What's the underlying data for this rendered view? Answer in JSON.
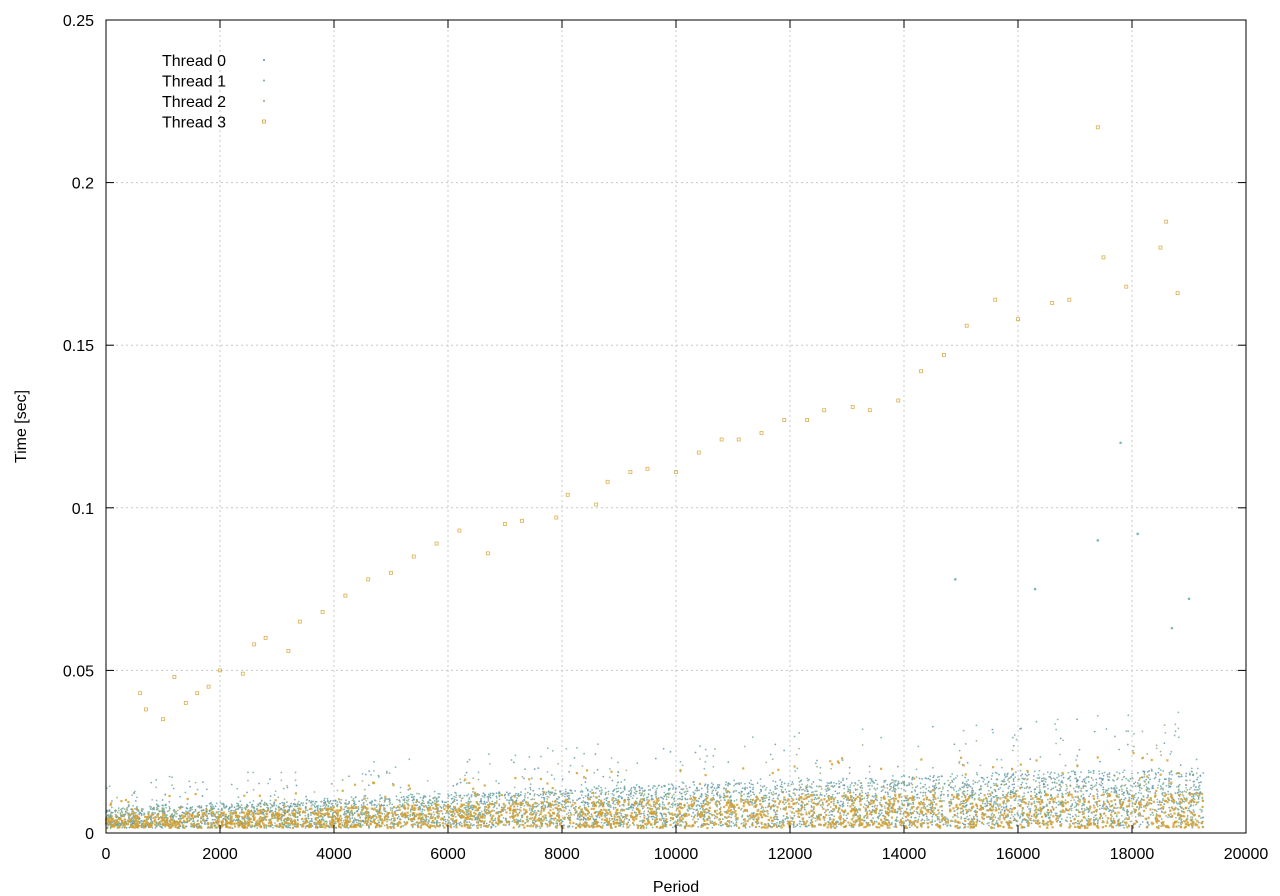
{
  "chart_data": {
    "type": "scatter",
    "title": "",
    "xlabel": "Period",
    "ylabel": "Time [sec]",
    "xlim": [
      0,
      20000
    ],
    "ylim": [
      0,
      0.25
    ],
    "x_ticks": [
      0,
      2000,
      4000,
      6000,
      8000,
      10000,
      12000,
      14000,
      16000,
      18000,
      20000
    ],
    "y_ticks": [
      0,
      0.05,
      0.1,
      0.15,
      0.2,
      0.25
    ],
    "x_tick_labels": [
      "0",
      "2000",
      "4000",
      "6000",
      "8000",
      "10000",
      "12000",
      "14000",
      "16000",
      "18000",
      "20000"
    ],
    "y_tick_labels": [
      "0",
      "0.05",
      "0.1",
      "0.15",
      "0.2",
      "0.25"
    ],
    "grid": true,
    "legend_position": "top-left",
    "x_range_of_points": [
      0,
      19250
    ],
    "series": [
      {
        "name": "Thread 0",
        "color": "#5b8fa8",
        "marker": "dot",
        "baseline_trend": [
          [
            0,
            0.004
          ],
          [
            6000,
            0.007
          ],
          [
            12000,
            0.009
          ],
          [
            19250,
            0.011
          ]
        ],
        "spread_trend": [
          [
            0,
            0.004
          ],
          [
            6000,
            0.006
          ],
          [
            12000,
            0.009
          ],
          [
            19250,
            0.011
          ]
        ],
        "outliers": []
      },
      {
        "name": "Thread 1",
        "color": "#62a8a8",
        "marker": "dot",
        "baseline_trend": [
          [
            0,
            0.004
          ],
          [
            6000,
            0.007
          ],
          [
            12000,
            0.009
          ],
          [
            19250,
            0.011
          ]
        ],
        "spread_trend": [
          [
            0,
            0.005
          ],
          [
            6000,
            0.007
          ],
          [
            12000,
            0.01
          ],
          [
            19250,
            0.012
          ]
        ],
        "outliers": [
          [
            16300,
            0.075
          ],
          [
            17400,
            0.09
          ],
          [
            17800,
            0.12
          ],
          [
            18100,
            0.092
          ],
          [
            18700,
            0.063
          ],
          [
            19000,
            0.072
          ],
          [
            14900,
            0.078
          ]
        ]
      },
      {
        "name": "Thread 2",
        "color": "#8fa878",
        "marker": "dot",
        "baseline_trend": [
          [
            0,
            0.004
          ],
          [
            6000,
            0.0065
          ],
          [
            12000,
            0.0085
          ],
          [
            19250,
            0.0105
          ]
        ],
        "spread_trend": [
          [
            0,
            0.004
          ],
          [
            6000,
            0.006
          ],
          [
            12000,
            0.008
          ],
          [
            19250,
            0.01
          ]
        ],
        "outliers": []
      },
      {
        "name": "Thread 3",
        "color": "#d4a030",
        "marker": "square",
        "baseline_trend": [
          [
            0,
            0.003
          ],
          [
            6000,
            0.005
          ],
          [
            12000,
            0.006
          ],
          [
            19250,
            0.006
          ]
        ],
        "spread_trend": [
          [
            0,
            0.003
          ],
          [
            6000,
            0.005
          ],
          [
            12000,
            0.007
          ],
          [
            19250,
            0.008
          ]
        ],
        "outliers": [
          [
            600,
            0.043
          ],
          [
            700,
            0.038
          ],
          [
            1000,
            0.035
          ],
          [
            1200,
            0.048
          ],
          [
            1400,
            0.04
          ],
          [
            1600,
            0.043
          ],
          [
            1800,
            0.045
          ],
          [
            2000,
            0.05
          ],
          [
            2400,
            0.049
          ],
          [
            2600,
            0.058
          ],
          [
            2800,
            0.06
          ],
          [
            3200,
            0.056
          ],
          [
            3400,
            0.065
          ],
          [
            3800,
            0.068
          ],
          [
            4200,
            0.073
          ],
          [
            4600,
            0.078
          ],
          [
            5000,
            0.08
          ],
          [
            5400,
            0.085
          ],
          [
            5800,
            0.089
          ],
          [
            6200,
            0.093
          ],
          [
            6700,
            0.086
          ],
          [
            7000,
            0.095
          ],
          [
            7300,
            0.096
          ],
          [
            7900,
            0.097
          ],
          [
            8100,
            0.104
          ],
          [
            8600,
            0.101
          ],
          [
            8800,
            0.108
          ],
          [
            9200,
            0.111
          ],
          [
            9500,
            0.112
          ],
          [
            10000,
            0.111
          ],
          [
            10400,
            0.117
          ],
          [
            10800,
            0.121
          ],
          [
            11100,
            0.121
          ],
          [
            11500,
            0.123
          ],
          [
            11900,
            0.127
          ],
          [
            12300,
            0.127
          ],
          [
            12600,
            0.13
          ],
          [
            13100,
            0.131
          ],
          [
            13400,
            0.13
          ],
          [
            13900,
            0.133
          ],
          [
            14300,
            0.142
          ],
          [
            14700,
            0.147
          ],
          [
            15100,
            0.156
          ],
          [
            15600,
            0.164
          ],
          [
            16000,
            0.158
          ],
          [
            16600,
            0.163
          ],
          [
            16900,
            0.164
          ],
          [
            17500,
            0.177
          ],
          [
            17900,
            0.168
          ],
          [
            18500,
            0.18
          ],
          [
            18800,
            0.166
          ],
          [
            17400,
            0.217
          ],
          [
            18600,
            0.188
          ]
        ]
      }
    ]
  }
}
